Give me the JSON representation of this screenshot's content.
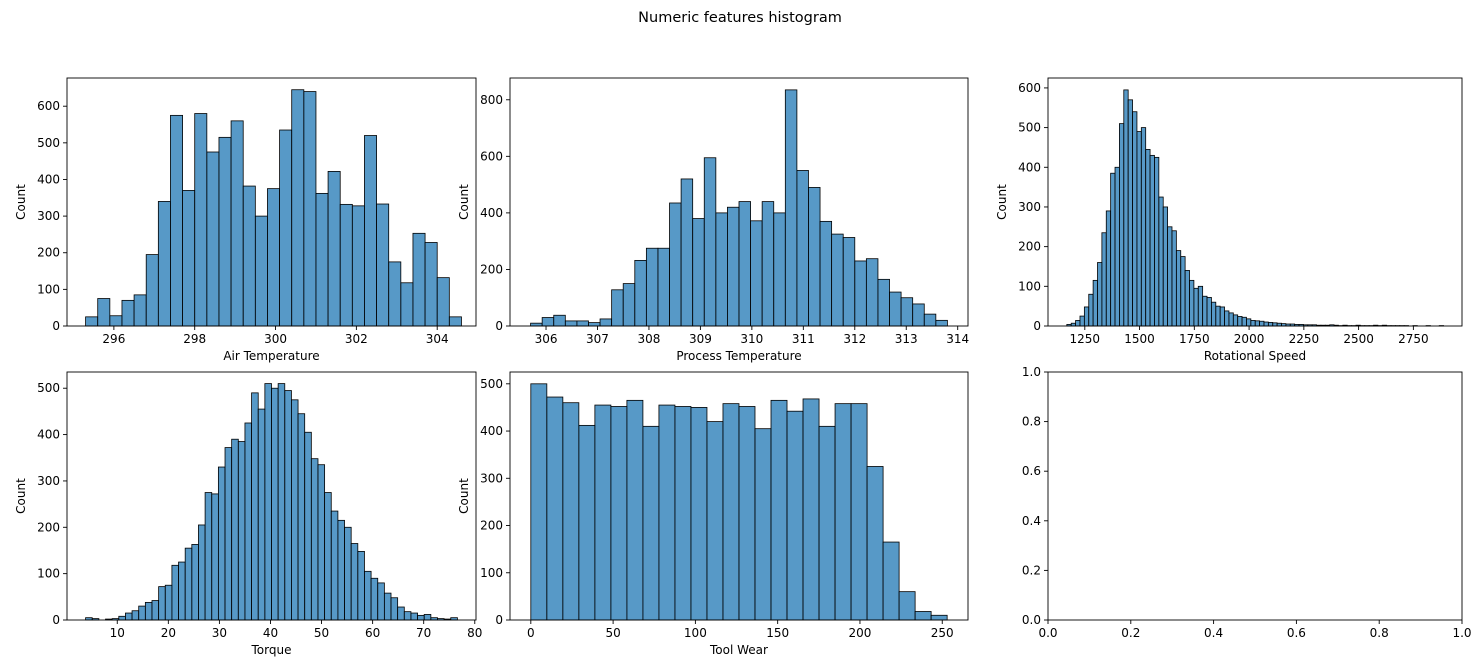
{
  "title": "Numeric features histogram",
  "chart_data": [
    {
      "type": "histogram",
      "xlabel": "Air Temperature",
      "ylabel": "Count",
      "color": "#1f77b4",
      "bins": [
        295.3,
        295.6,
        295.9,
        296.2,
        296.5,
        296.8,
        297.1,
        297.4,
        297.7,
        298.0,
        298.3,
        298.6,
        298.9,
        299.2,
        299.5,
        299.8,
        300.1,
        300.4,
        300.7,
        301.0,
        301.3,
        301.6,
        301.9,
        302.2,
        302.5,
        302.8,
        303.1,
        303.4,
        303.7,
        304.0,
        304.3,
        304.6
      ],
      "values": [
        25,
        75,
        28,
        70,
        85,
        195,
        340,
        575,
        370,
        580,
        475,
        515,
        560,
        382,
        300,
        375,
        535,
        645,
        640,
        362,
        422,
        332,
        328,
        520,
        333,
        175,
        118,
        253,
        228,
        132,
        25
      ],
      "xlim": [
        294.84,
        304.96
      ],
      "xticks": [
        296,
        298,
        300,
        302,
        304
      ],
      "ylim": [
        0,
        677
      ],
      "yticks": [
        0,
        100,
        200,
        300,
        400,
        500,
        600
      ]
    },
    {
      "type": "histogram",
      "xlabel": "Process Temperature",
      "ylabel": "Count",
      "color": "#1f77b4",
      "bins": [
        305.7,
        305.925,
        306.15,
        306.375,
        306.6,
        306.825,
        307.05,
        307.275,
        307.5,
        307.725,
        307.95,
        308.175,
        308.4,
        308.625,
        308.85,
        309.075,
        309.3,
        309.525,
        309.75,
        309.975,
        310.2,
        310.425,
        310.65,
        310.875,
        311.1,
        311.325,
        311.55,
        311.775,
        312.0,
        312.225,
        312.45,
        312.675,
        312.9,
        313.125,
        313.35,
        313.575,
        313.8
      ],
      "values": [
        10,
        30,
        38,
        18,
        18,
        12,
        25,
        128,
        150,
        232,
        275,
        275,
        435,
        520,
        380,
        595,
        400,
        420,
        440,
        372,
        440,
        400,
        835,
        550,
        490,
        370,
        325,
        313,
        230,
        238,
        165,
        120,
        100,
        78,
        42,
        20
      ],
      "xlim": [
        305.3,
        314.2
      ],
      "xticks": [
        306,
        307,
        308,
        309,
        310,
        311,
        312,
        313,
        314
      ],
      "ylim": [
        0,
        877
      ],
      "yticks": [
        0,
        200,
        400,
        600,
        800
      ]
    },
    {
      "type": "histogram",
      "xlabel": "Rotational Speed",
      "ylabel": "Count",
      "color": "#1f77b4",
      "bins": [
        1168,
        1188,
        1208,
        1228,
        1248,
        1268,
        1288,
        1308,
        1328,
        1348,
        1368,
        1388,
        1408,
        1428,
        1448,
        1468,
        1488,
        1508,
        1528,
        1548,
        1568,
        1588,
        1608,
        1628,
        1648,
        1668,
        1688,
        1708,
        1728,
        1748,
        1768,
        1788,
        1808,
        1828,
        1848,
        1868,
        1888,
        1908,
        1928,
        1948,
        1968,
        1988,
        2008,
        2028,
        2048,
        2068,
        2088,
        2108,
        2128,
        2148,
        2168,
        2188,
        2208,
        2228,
        2248,
        2268,
        2288,
        2308,
        2328,
        2348,
        2368,
        2388,
        2408,
        2428,
        2448,
        2468,
        2488,
        2508,
        2528,
        2548,
        2568,
        2588,
        2608,
        2628,
        2648,
        2668,
        2688,
        2708,
        2728,
        2748,
        2768,
        2788,
        2808,
        2828,
        2848,
        2868,
        2888
      ],
      "values": [
        4,
        7,
        14,
        25,
        48,
        80,
        115,
        160,
        235,
        290,
        385,
        400,
        510,
        595,
        570,
        540,
        490,
        500,
        445,
        430,
        425,
        325,
        300,
        250,
        240,
        190,
        175,
        140,
        115,
        95,
        100,
        75,
        72,
        60,
        50,
        48,
        38,
        33,
        28,
        24,
        22,
        18,
        14,
        13,
        12,
        10,
        9,
        8,
        7,
        6,
        5,
        5,
        4,
        4,
        3,
        3,
        3,
        2,
        2,
        2,
        3,
        2,
        1,
        2,
        1,
        1,
        2,
        1,
        1,
        1,
        2,
        1,
        2,
        1,
        1,
        1,
        1,
        1,
        0,
        1,
        0,
        0,
        1,
        0,
        0,
        1
      ],
      "xlim": [
        1082,
        2972
      ],
      "xticks": [
        1250,
        1500,
        1750,
        2000,
        2250,
        2500,
        2750
      ],
      "ylim": [
        0,
        625
      ],
      "yticks": [
        0,
        100,
        200,
        300,
        400,
        500,
        600
      ]
    },
    {
      "type": "histogram",
      "xlabel": "Torque",
      "ylabel": "Count",
      "color": "#1f77b4",
      "bins": [
        3.8,
        5.1,
        6.4,
        7.7,
        9.0,
        10.3,
        11.6,
        12.9,
        14.2,
        15.5,
        16.8,
        18.1,
        19.4,
        20.7,
        22.0,
        23.3,
        24.6,
        25.9,
        27.2,
        28.5,
        29.8,
        31.1,
        32.4,
        33.7,
        35.0,
        36.3,
        37.6,
        38.9,
        40.2,
        41.5,
        42.8,
        44.1,
        45.4,
        46.7,
        48.0,
        49.3,
        50.6,
        51.9,
        53.2,
        54.5,
        55.8,
        57.1,
        58.4,
        59.7,
        61.0,
        62.3,
        63.6,
        64.9,
        66.2,
        67.5,
        68.8,
        70.1,
        71.4,
        72.7,
        74.0,
        75.3,
        76.6
      ],
      "values": [
        5,
        3,
        0,
        2,
        3,
        8,
        15,
        20,
        30,
        38,
        42,
        72,
        75,
        118,
        125,
        155,
        163,
        205,
        275,
        272,
        330,
        372,
        390,
        385,
        425,
        490,
        455,
        510,
        500,
        510,
        495,
        475,
        445,
        405,
        348,
        335,
        275,
        235,
        215,
        200,
        165,
        148,
        105,
        90,
        80,
        58,
        48,
        28,
        18,
        15,
        10,
        12,
        5,
        3,
        2,
        5
      ],
      "xlim": [
        0.16,
        80.24
      ],
      "xticks": [
        10,
        20,
        30,
        40,
        50,
        60,
        70,
        80
      ],
      "ylim": [
        0,
        535
      ],
      "yticks": [
        0,
        100,
        200,
        300,
        400,
        500
      ]
    },
    {
      "type": "histogram",
      "xlabel": "Tool Wear",
      "ylabel": "Count",
      "color": "#1f77b4",
      "bins": [
        0,
        9.73,
        19.46,
        29.19,
        38.92,
        48.65,
        58.38,
        68.11,
        77.84,
        87.57,
        97.3,
        107.03,
        116.76,
        126.49,
        136.22,
        145.95,
        155.68,
        165.41,
        175.14,
        184.87,
        194.6,
        204.33,
        214.06,
        223.79,
        233.52,
        243.25,
        252.98
      ],
      "values": [
        500,
        472,
        460,
        412,
        455,
        452,
        465,
        410,
        455,
        452,
        450,
        420,
        458,
        452,
        405,
        465,
        442,
        468,
        410,
        458,
        458,
        325,
        165,
        60,
        18,
        10
      ],
      "xlim": [
        -12.65,
        265.65
      ],
      "xticks": [
        0,
        50,
        100,
        150,
        200,
        250
      ],
      "ylim": [
        0,
        525
      ],
      "yticks": [
        0,
        100,
        200,
        300,
        400,
        500
      ]
    },
    {
      "type": "empty",
      "xlim": [
        0,
        1
      ],
      "xticks": [
        {
          "value": 0,
          "label": "0.0"
        },
        {
          "value": 0.2,
          "label": "0.2"
        },
        {
          "value": 0.4,
          "label": "0.4"
        },
        {
          "value": 0.6,
          "label": "0.6"
        },
        {
          "value": 0.8,
          "label": "0.8"
        },
        {
          "value": 1,
          "label": "1.0"
        }
      ],
      "ylim": [
        0,
        1
      ],
      "yticks": [
        {
          "value": 0,
          "label": "0.0"
        },
        {
          "value": 0.2,
          "label": "0.2"
        },
        {
          "value": 0.4,
          "label": "0.4"
        },
        {
          "value": 0.6,
          "label": "0.6"
        },
        {
          "value": 0.8,
          "label": "0.8"
        },
        {
          "value": 1,
          "label": "1.0"
        }
      ]
    }
  ]
}
